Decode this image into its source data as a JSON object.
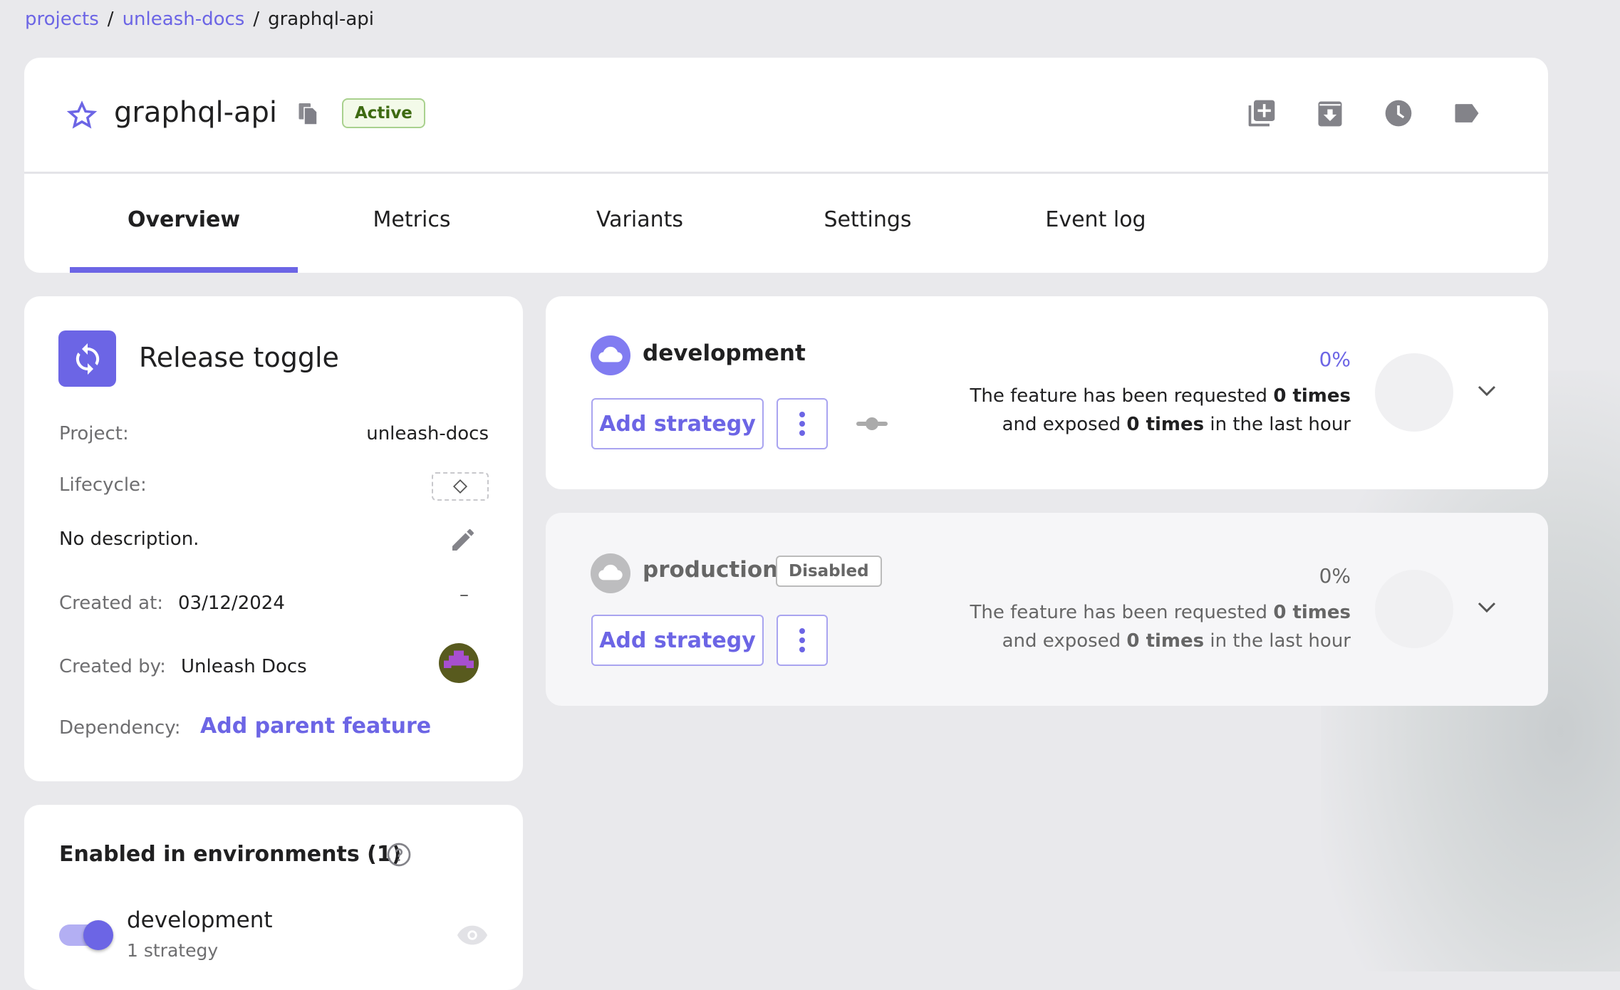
{
  "breadcrumb": [
    {
      "label": "projects"
    },
    {
      "label": "unleash-docs"
    },
    {
      "label": "graphql-api"
    }
  ],
  "breadcrumb_sep": "/",
  "header": {
    "title": "graphql-api",
    "status": "Active",
    "actions": [
      "clone-icon",
      "archive-icon",
      "history-icon",
      "tag-icon"
    ]
  },
  "tabs": [
    {
      "label": "Overview",
      "active": true
    },
    {
      "label": "Metrics"
    },
    {
      "label": "Variants"
    },
    {
      "label": "Settings"
    },
    {
      "label": "Event log"
    }
  ],
  "details": {
    "type": "Release toggle",
    "project_label": "Project:",
    "project": "unleash-docs",
    "lifecycle_label": "Lifecycle:",
    "description": "No description.",
    "created_at_label": "Created at:",
    "created_at": "03/12/2024",
    "created_at_extra": "–",
    "created_by_label": "Created by:",
    "created_by": "Unleash Docs",
    "dependency_label": "Dependency:",
    "dependency_action": "Add parent feature"
  },
  "enabled": {
    "title": "Enabled in environments (1)",
    "items": [
      {
        "name": "development",
        "strategies": "1 strategy",
        "enabled": true
      }
    ]
  },
  "environments": [
    {
      "name": "development",
      "disabled": false,
      "percent": "0%",
      "add_label": "Add strategy",
      "line1": "The feature has been requested ",
      "count1": "0 times",
      "line2a": "and exposed ",
      "count2": "0 times",
      "line2b": " in the last hour"
    },
    {
      "name": "production",
      "disabled": true,
      "badge": "Disabled",
      "percent": "0%",
      "add_label": "Add strategy",
      "line1": "The feature has been requested ",
      "count1": "0 times",
      "line2a": "and exposed ",
      "count2": "0 times",
      "line2b": " in the last hour"
    }
  ],
  "colors": {
    "accent": "#6c65e5",
    "active_badge": "#3e6b12",
    "background": "#e9e9ec"
  }
}
